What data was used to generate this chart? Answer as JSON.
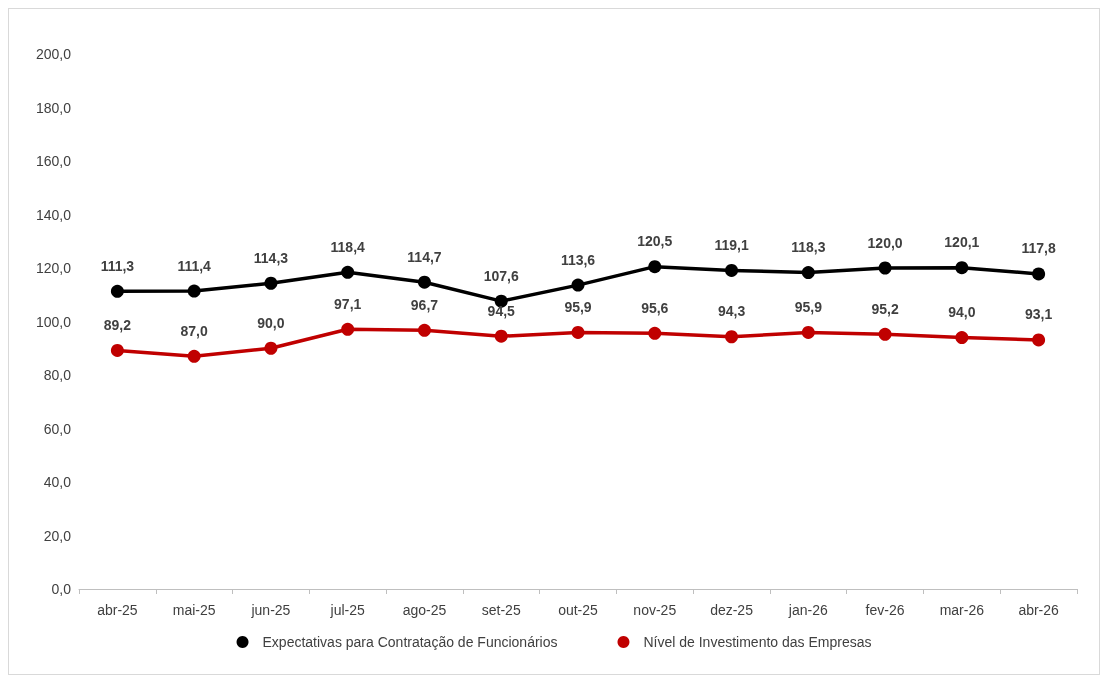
{
  "chart_data": {
    "type": "line",
    "categories": [
      "abr-25",
      "mai-25",
      "jun-25",
      "jul-25",
      "ago-25",
      "set-25",
      "out-25",
      "nov-25",
      "dez-25",
      "jan-26",
      "fev-26",
      "mar-26",
      "abr-26"
    ],
    "series": [
      {
        "name": "Expectativas para Contratação de Funcionários",
        "color": "#000000",
        "values": [
          111.3,
          111.4,
          114.3,
          118.4,
          114.7,
          107.6,
          113.6,
          120.5,
          119.1,
          118.3,
          120.0,
          120.1,
          117.8
        ],
        "value_labels": [
          "111,3",
          "111,4",
          "114,3",
          "118,4",
          "114,7",
          "107,6",
          "113,6",
          "120,5",
          "119,1",
          "118,3",
          "120,0",
          "120,1",
          "117,8"
        ]
      },
      {
        "name": "Nível de Investimento das Empresas",
        "color": "#c00000",
        "values": [
          89.2,
          87.0,
          90.0,
          97.1,
          96.7,
          94.5,
          95.9,
          95.6,
          94.3,
          95.9,
          95.2,
          94.0,
          93.1
        ],
        "value_labels": [
          "89,2",
          "87,0",
          "90,0",
          "97,1",
          "96,7",
          "94,5",
          "95,9",
          "95,6",
          "94,3",
          "95,9",
          "95,2",
          "94,0",
          "93,1"
        ]
      }
    ],
    "ylim": [
      0,
      200
    ],
    "yticks": [
      {
        "value": 0,
        "label": "0,0"
      },
      {
        "value": 20,
        "label": "20,0"
      },
      {
        "value": 40,
        "label": "40,0"
      },
      {
        "value": 60,
        "label": "60,0"
      },
      {
        "value": 80,
        "label": "80,0"
      },
      {
        "value": 100,
        "label": "100,0"
      },
      {
        "value": 120,
        "label": "120,0"
      },
      {
        "value": 140,
        "label": "140,0"
      },
      {
        "value": 160,
        "label": "160,0"
      },
      {
        "value": 180,
        "label": "180,0"
      },
      {
        "value": 200,
        "label": "200,0"
      }
    ],
    "grid": false,
    "legend": "bottom",
    "marker": "circle",
    "line_style": "solid"
  }
}
